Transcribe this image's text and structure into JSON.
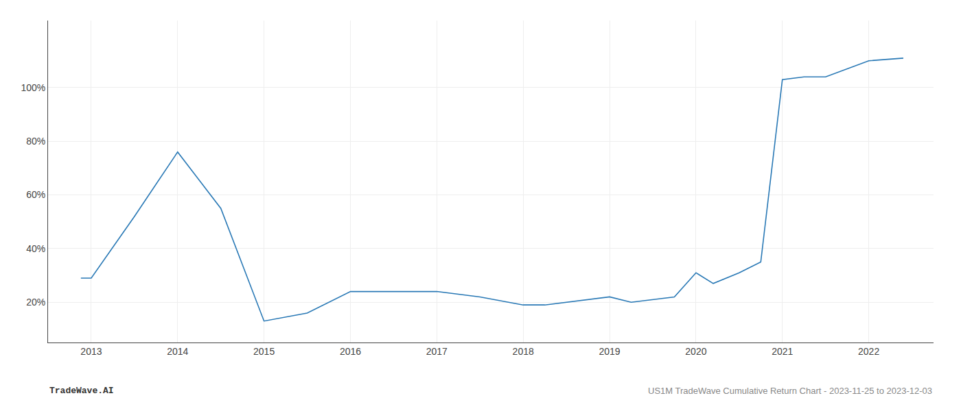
{
  "chart_data": {
    "type": "line",
    "x": [
      2012.88,
      2013.0,
      2013.5,
      2014.0,
      2014.5,
      2015.0,
      2015.5,
      2016.0,
      2016.5,
      2017.0,
      2017.5,
      2018.0,
      2018.25,
      2018.5,
      2019.0,
      2019.25,
      2019.5,
      2019.75,
      2020.0,
      2020.2,
      2020.5,
      2020.75,
      2021.0,
      2021.25,
      2021.5,
      2022.0,
      2022.4
    ],
    "values": [
      29,
      29,
      52,
      76,
      55,
      13,
      16,
      24,
      24,
      24,
      22,
      19,
      19,
      20,
      22,
      20,
      21,
      22,
      31,
      27,
      31,
      35,
      103,
      104,
      104,
      110,
      111
    ],
    "color": "#2878b5",
    "xlim": [
      2012.5,
      2022.75
    ],
    "xticks": [
      2013,
      2014,
      2015,
      2016,
      2017,
      2018,
      2019,
      2020,
      2021,
      2022
    ],
    "ylim": [
      5,
      125
    ],
    "yticks": [
      {
        "value": 20,
        "label": "20%"
      },
      {
        "value": 40,
        "label": "40%"
      },
      {
        "value": 60,
        "label": "60%"
      },
      {
        "value": 80,
        "label": "80%"
      },
      {
        "value": 100,
        "label": "100%"
      }
    ],
    "grid": true,
    "annotations": [
      "TradeWave.AI",
      "US1M TradeWave Cumulative Return Chart - 2023-11-25 to 2023-12-03"
    ]
  }
}
